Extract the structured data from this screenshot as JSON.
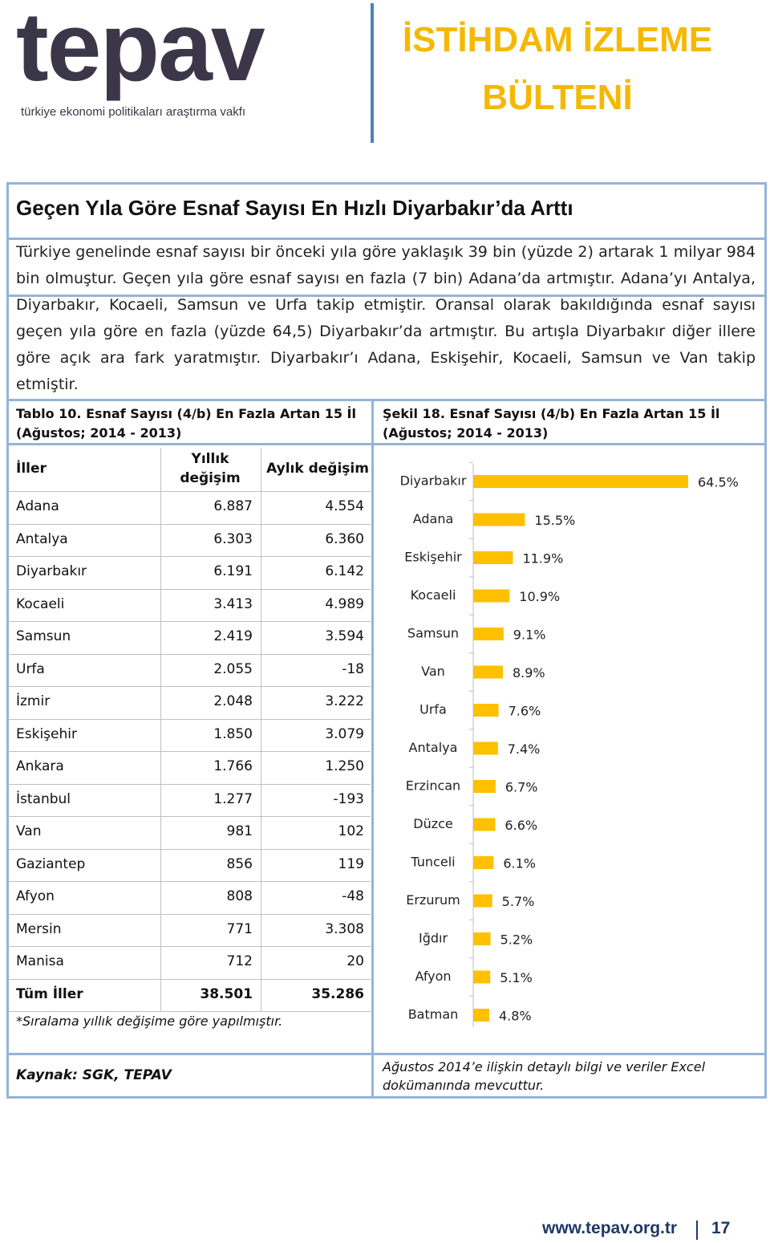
{
  "header": {
    "logo": "tepav",
    "logo_subtitle": "türkiye ekonomi politikaları araştırma vakfı",
    "title": "İSTİHDAM İZLEME BÜLTENİ"
  },
  "article": {
    "heading": "Geçen Yıla Göre Esnaf Sayısı En Hızlı Diyarbakır’da Arttı",
    "body": "Türkiye genelinde esnaf sayısı bir önceki yıla göre yaklaşık 39 bin (yüzde 2) artarak 1 milyar 984 bin olmuştur. Geçen yıla göre esnaf sayısı en fazla (7 bin) Adana’da artmıştır. Adana’yı Antalya, Diyarbakır, Kocaeli, Samsun ve Urfa takip etmiştir. Oransal olarak bakıldığında esnaf sayısı geçen yıla göre en fazla (yüzde 64,5) Diyarbakır’da artmıştır. Bu artışla Diyarbakır diğer illere göre açık ara fark yaratmıştır. Diyarbakır’ı Adana, Eskişehir, Kocaeli, Samsun ve Van takip etmiştir."
  },
  "table": {
    "caption": "Tablo 10. Esnaf Sayısı (4/b) En Fazla Artan 15 İl (Ağustos; 2014 - 2013)",
    "columns": [
      "İller",
      "Yıllık değişim",
      "Aylık değişim"
    ],
    "rows": [
      [
        "Adana",
        "6.887",
        "4.554"
      ],
      [
        "Antalya",
        "6.303",
        "6.360"
      ],
      [
        "Diyarbakır",
        "6.191",
        "6.142"
      ],
      [
        "Kocaeli",
        "3.413",
        "4.989"
      ],
      [
        "Samsun",
        "2.419",
        "3.594"
      ],
      [
        "Urfa",
        "2.055",
        "-18"
      ],
      [
        "İzmir",
        "2.048",
        "3.222"
      ],
      [
        "Eskişehir",
        "1.850",
        "3.079"
      ],
      [
        "Ankara",
        "1.766",
        "1.250"
      ],
      [
        "İstanbul",
        "1.277",
        "-193"
      ],
      [
        "Van",
        "981",
        "102"
      ],
      [
        "Gaziantep",
        "856",
        "119"
      ],
      [
        "Afyon",
        "808",
        "-48"
      ],
      [
        "Mersin",
        "771",
        "3.308"
      ],
      [
        "Manisa",
        "712",
        "20"
      ]
    ],
    "total": [
      "Tüm İller",
      "38.501",
      "35.286"
    ],
    "note": "*Sıralama yıllık değişime göre yapılmıştır."
  },
  "chart_data": {
    "type": "bar",
    "title": "Şekil 18. Esnaf Sayısı (4/b) En Fazla Artan 15 İl (Ağustos; 2014 - 2013)",
    "categories": [
      "Diyarbakır",
      "Adana",
      "Eskişehir",
      "Kocaeli",
      "Samsun",
      "Van",
      "Urfa",
      "Antalya",
      "Erzincan",
      "Düzce",
      "Tunceli",
      "Erzurum",
      "Iğdır",
      "Afyon",
      "Batman"
    ],
    "values": [
      64.5,
      15.5,
      11.9,
      10.9,
      9.1,
      8.9,
      7.6,
      7.4,
      6.7,
      6.6,
      6.1,
      5.7,
      5.2,
      5.1,
      4.8
    ],
    "value_labels": [
      "64.5%",
      "15.5%",
      "11.9%",
      "10.9%",
      "9.1%",
      "8.9%",
      "7.6%",
      "7.4%",
      "6.7%",
      "6.6%",
      "6.1%",
      "5.7%",
      "5.2%",
      "5.1%",
      "4.8%"
    ],
    "color": "#ffc000"
  },
  "sources": {
    "left": "Kaynak: SGK, TEPAV",
    "right": "Ağustos 2014’e ilişkin detaylı bilgi ve veriler Excel dokümanında mevcuttur."
  },
  "footer": {
    "url": "www.tepav.org.tr",
    "page": "17"
  }
}
